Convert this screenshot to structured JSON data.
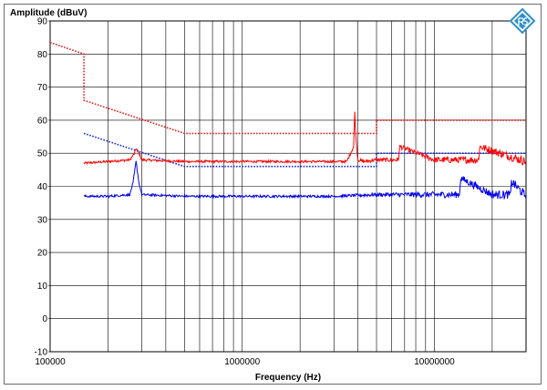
{
  "chart_data": {
    "type": "line",
    "ylabel": "Amplitude (dBuV)",
    "xlabel": "Frequency (Hz)",
    "x_scale": "log",
    "xlim": [
      100000,
      30000000
    ],
    "ylim": [
      -10,
      90
    ],
    "x_tick_labels": [
      "100000",
      "1000000",
      "10000000"
    ],
    "x_tick_values": [
      100000,
      1000000,
      10000000
    ],
    "y_ticks": [
      -10,
      0,
      10,
      20,
      30,
      40,
      50,
      60,
      70,
      80,
      90
    ],
    "grid": true,
    "legend": "none",
    "series": [
      {
        "style": "dotted",
        "color": "#e41c1c",
        "x": [
          100000,
          150000,
          150000,
          500000,
          500000,
          5000000,
          5000000,
          30000000
        ],
        "y": [
          83.5,
          80,
          66,
          56,
          56,
          56,
          60,
          60
        ]
      },
      {
        "style": "dotted",
        "color": "#1a2bd8",
        "x": [
          150000,
          500000,
          5000000,
          5000000,
          30000000
        ],
        "y": [
          56,
          46,
          46,
          50,
          50
        ]
      },
      {
        "style": "solid",
        "color": "#ff0000",
        "x": [
          150000,
          200000,
          260000,
          275000,
          280000,
          290000,
          300000,
          500000,
          1000000,
          2000000,
          3500000,
          3800000,
          3850000,
          3900000,
          4000000,
          4300000,
          5000000,
          6500000,
          6600000,
          10000000,
          17000000,
          17200000,
          30000000
        ],
        "y": [
          47,
          47.5,
          48,
          50,
          51.5,
          50,
          48,
          47.5,
          47.5,
          47.5,
          47.5,
          52,
          62.5,
          55,
          48,
          47.5,
          48,
          48,
          52,
          48,
          48,
          52,
          47.5
        ]
      },
      {
        "style": "solid",
        "color": "#0000ee",
        "x": [
          150000,
          200000,
          260000,
          270000,
          280000,
          290000,
          300000,
          500000,
          1000000,
          2000000,
          3000000,
          5000000,
          10000000,
          13500000,
          13700000,
          20000000,
          25000000,
          25200000,
          30000000
        ],
        "y": [
          37,
          37,
          37.5,
          41,
          47.5,
          41,
          37.5,
          37,
          37,
          37,
          37,
          37.5,
          37.5,
          37.5,
          42.5,
          37.5,
          37.5,
          41.5,
          37
        ]
      }
    ]
  },
  "logo": {
    "icon": "rohde-schwarz-logo-icon",
    "color": "#2e90c7"
  }
}
